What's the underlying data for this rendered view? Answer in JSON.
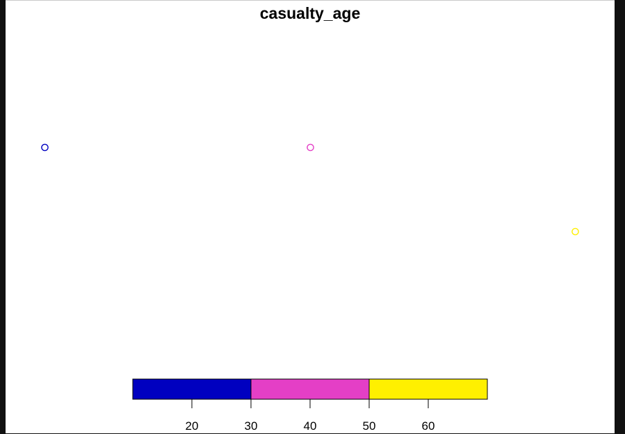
{
  "chart_data": {
    "type": "scatter",
    "title": "casualty_age",
    "points": [
      {
        "value": 20,
        "color": "#0000C0"
      },
      {
        "value": 40,
        "color": "#E43FC6"
      },
      {
        "value": 60,
        "color": "#FFF000"
      }
    ],
    "legend": {
      "type": "colorbar",
      "placement": "bottom",
      "range": [
        10,
        70
      ],
      "bins": [
        {
          "from": 10,
          "to": 30,
          "color": "#0000C0"
        },
        {
          "from": 30,
          "to": 50,
          "color": "#E43FC6"
        },
        {
          "from": 50,
          "to": 70,
          "color": "#FFF000"
        }
      ],
      "ticks": [
        20,
        30,
        40,
        50,
        60
      ],
      "tick_labels": [
        "20",
        "30",
        "40",
        "50",
        "60"
      ]
    }
  }
}
